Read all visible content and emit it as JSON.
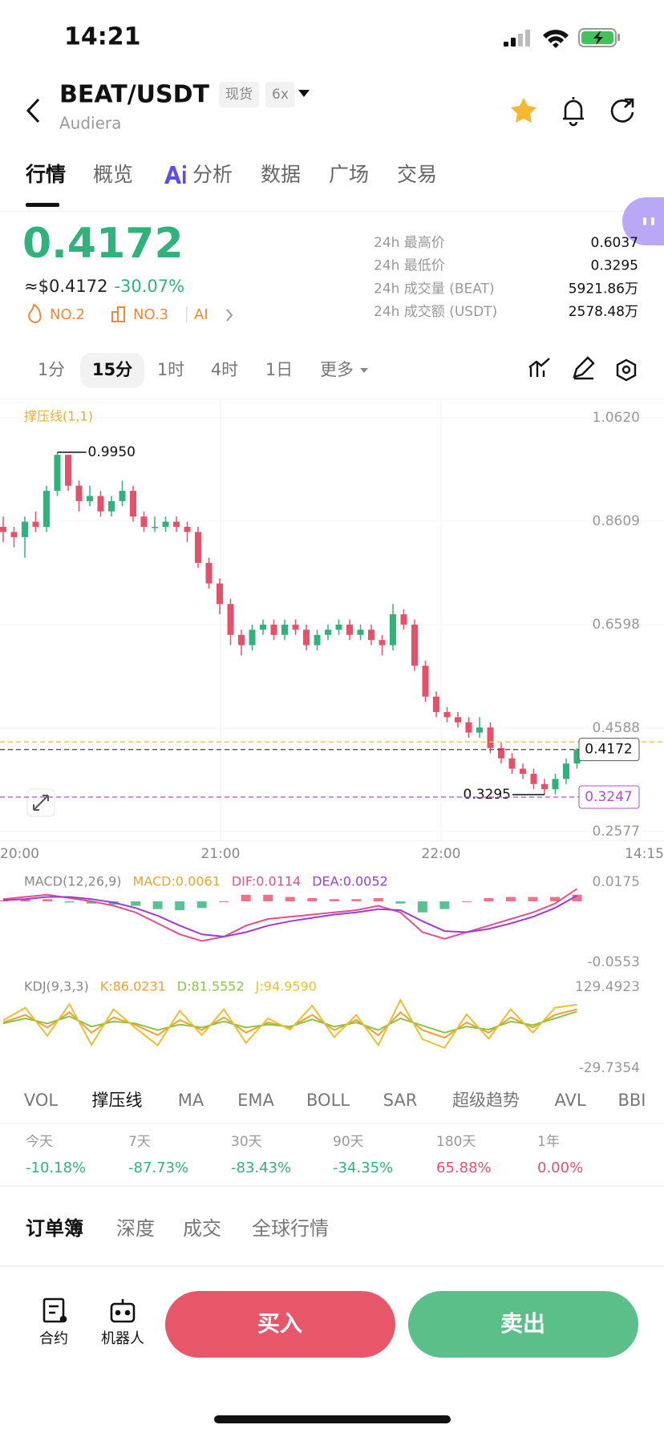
{
  "status_bar": {
    "time": "14:21"
  },
  "header": {
    "pair": "BEAT/USDT",
    "badges": [
      "现货",
      "6x"
    ],
    "subtitle": "Audiera"
  },
  "tabs": [
    "行情",
    "概览",
    "分析",
    "数据",
    "广场",
    "交易"
  ],
  "ticker": {
    "price": "0.4172",
    "usd": "≈$0.4172",
    "change": "-30.07%",
    "ranks": [
      "NO.2",
      "NO.3",
      "AI"
    ]
  },
  "stats": [
    {
      "label": "24h 最高价",
      "value": "0.6037"
    },
    {
      "label": "24h 最低价",
      "value": "0.3295"
    },
    {
      "label": "24h 成交量 (BEAT)",
      "value": "5921.86万"
    },
    {
      "label": "24h 成交额 (USDT)",
      "value": "2578.48万"
    }
  ],
  "timeframes": [
    "1分",
    "15分",
    "1时",
    "4时",
    "1日",
    "更多"
  ],
  "chart_data": [
    {
      "type": "candlestick",
      "title": "撑压线(1,1)",
      "open": [
        0.85,
        0.84,
        0.83,
        0.86,
        0.85,
        0.92,
        0.99,
        0.93,
        0.9,
        0.91,
        0.88,
        0.9,
        0.92,
        0.87,
        0.85,
        0.85,
        0.86,
        0.85,
        0.84,
        0.78,
        0.74,
        0.7,
        0.64,
        0.62,
        0.65,
        0.66,
        0.64,
        0.66,
        0.65,
        0.62,
        0.64,
        0.65,
        0.66,
        0.64,
        0.65,
        0.63,
        0.62,
        0.68,
        0.66,
        0.58,
        0.52,
        0.49,
        0.48,
        0.47,
        0.45,
        0.46,
        0.42,
        0.4,
        0.38,
        0.37,
        0.35,
        0.34,
        0.36,
        0.39
      ],
      "high": [
        0.87,
        0.85,
        0.87,
        0.88,
        0.93,
        0.995,
        0.99,
        0.94,
        0.93,
        0.92,
        0.91,
        0.94,
        0.93,
        0.88,
        0.87,
        0.87,
        0.87,
        0.86,
        0.85,
        0.79,
        0.75,
        0.71,
        0.65,
        0.66,
        0.67,
        0.67,
        0.67,
        0.67,
        0.66,
        0.65,
        0.66,
        0.67,
        0.67,
        0.66,
        0.66,
        0.64,
        0.7,
        0.69,
        0.67,
        0.59,
        0.53,
        0.5,
        0.49,
        0.48,
        0.48,
        0.47,
        0.43,
        0.41,
        0.39,
        0.38,
        0.36,
        0.37,
        0.4,
        0.42
      ],
      "low": [
        0.82,
        0.81,
        0.79,
        0.84,
        0.84,
        0.91,
        0.92,
        0.88,
        0.89,
        0.87,
        0.87,
        0.89,
        0.86,
        0.84,
        0.84,
        0.84,
        0.84,
        0.82,
        0.77,
        0.73,
        0.68,
        0.62,
        0.6,
        0.61,
        0.64,
        0.63,
        0.63,
        0.64,
        0.61,
        0.61,
        0.63,
        0.64,
        0.63,
        0.63,
        0.62,
        0.6,
        0.61,
        0.65,
        0.57,
        0.51,
        0.48,
        0.47,
        0.46,
        0.44,
        0.44,
        0.41,
        0.39,
        0.37,
        0.36,
        0.34,
        0.3295,
        0.33,
        0.35,
        0.38
      ],
      "close": [
        0.84,
        0.83,
        0.86,
        0.85,
        0.92,
        0.99,
        0.93,
        0.9,
        0.91,
        0.88,
        0.9,
        0.92,
        0.87,
        0.85,
        0.85,
        0.86,
        0.85,
        0.84,
        0.78,
        0.74,
        0.7,
        0.64,
        0.62,
        0.65,
        0.66,
        0.64,
        0.66,
        0.65,
        0.62,
        0.64,
        0.65,
        0.66,
        0.64,
        0.65,
        0.63,
        0.62,
        0.68,
        0.66,
        0.58,
        0.52,
        0.49,
        0.48,
        0.47,
        0.45,
        0.46,
        0.42,
        0.4,
        0.38,
        0.37,
        0.35,
        0.34,
        0.36,
        0.39,
        0.4172
      ],
      "up_color": "#2fb37a",
      "down_color": "#e8506a",
      "ylim": [
        0.2577,
        1.062
      ],
      "yticks": [
        {
          "value": 1.062,
          "label": "1.0620"
        },
        0.8609,
        0.6598,
        0.4588,
        0.2577
      ],
      "time_labels": [
        "20:00",
        "21:00",
        "22:00",
        "14:15"
      ],
      "annotations": [
        {
          "value": 0.995,
          "label": "0.9950"
        },
        {
          "value": 0.3295,
          "label": "0.3295"
        }
      ],
      "price_lines": [
        {
          "value": 0.432,
          "color": "#e8c840"
        },
        {
          "value": 0.4172,
          "label": "0.4172",
          "color": "#555555"
        },
        {
          "value": 0.3247,
          "label": "0.3247",
          "color": "#b04fd0"
        }
      ]
    },
    {
      "type": "macd",
      "title": "MACD(12,26,9)",
      "ylim": [
        -0.0553,
        0.0175
      ],
      "yticks": [
        0.0175,
        -0.0553
      ],
      "series": [
        {
          "name": "MACD:0.0061",
          "color": "#f0a030",
          "up_color": "#e8506a",
          "down_color": "#2fb37a",
          "values": [
            0.001,
            0.002,
            0.002,
            -0.001,
            -0.002,
            -0.003,
            -0.004,
            -0.007,
            -0.008,
            -0.006,
            0.0,
            0.006,
            0.006,
            0.004,
            0.003,
            0.002,
            0.002,
            0.003,
            -0.002,
            -0.01,
            -0.007,
            0.0,
            0.003,
            0.004,
            0.004,
            0.004,
            0.0061
          ]
        },
        {
          "name": "DIF:0.0114",
          "color": "#e0508a",
          "values": [
            0.002,
            0.004,
            0.006,
            0.003,
            0.0,
            -0.004,
            -0.01,
            -0.02,
            -0.03,
            -0.036,
            -0.032,
            -0.022,
            -0.016,
            -0.014,
            -0.012,
            -0.01,
            -0.008,
            -0.004,
            -0.01,
            -0.028,
            -0.034,
            -0.028,
            -0.022,
            -0.016,
            -0.01,
            -0.002,
            0.0114
          ]
        },
        {
          "name": "DEA:0.0052",
          "color": "#9b3dd6",
          "values": [
            0.001,
            0.002,
            0.004,
            0.004,
            0.002,
            -0.001,
            -0.006,
            -0.013,
            -0.022,
            -0.03,
            -0.032,
            -0.028,
            -0.022,
            -0.018,
            -0.015,
            -0.012,
            -0.01,
            -0.007,
            -0.008,
            -0.018,
            -0.027,
            -0.028,
            -0.025,
            -0.02,
            -0.014,
            -0.006,
            0.0052
          ]
        }
      ]
    },
    {
      "type": "kdj",
      "title": "KDJ(9,3,3)",
      "ylim": [
        -29.7354,
        129.4923
      ],
      "yticks": [
        129.4923,
        -29.7354
      ],
      "series": [
        {
          "name": "K:86.0231",
          "color": "#f0a030",
          "values": [
            60,
            75,
            50,
            80,
            40,
            70,
            55,
            35,
            65,
            45,
            70,
            40,
            60,
            50,
            75,
            45,
            65,
            35,
            80,
            45,
            30,
            60,
            40,
            70,
            50,
            75,
            86.0231
          ]
        },
        {
          "name": "D:81.5552",
          "color": "#8bc34a",
          "values": [
            58,
            68,
            58,
            72,
            52,
            62,
            58,
            45,
            56,
            50,
            62,
            50,
            56,
            52,
            66,
            52,
            60,
            45,
            68,
            54,
            40,
            52,
            46,
            62,
            55,
            68,
            81.5552
          ]
        },
        {
          "name": "J:94.9590",
          "color": "#e8c030",
          "values": [
            64,
            89,
            34,
            96,
            16,
            86,
            49,
            15,
            83,
            35,
            86,
            20,
            68,
            46,
            93,
            31,
            75,
            15,
            104,
            27,
            10,
            76,
            28,
            86,
            40,
            89,
            94.959
          ]
        }
      ]
    }
  ],
  "indicator_tabs": [
    "VOL",
    "撑压线",
    "MA",
    "EMA",
    "BOLL",
    "SAR",
    "超级趋势",
    "AVL",
    "BBI"
  ],
  "period_returns": [
    {
      "label": "今天",
      "value": "-10.18%"
    },
    {
      "label": "7天",
      "value": "-87.73%"
    },
    {
      "label": "30天",
      "value": "-83.43%"
    },
    {
      "label": "90天",
      "value": "-34.35%"
    },
    {
      "label": "180天",
      "value": "65.88%"
    },
    {
      "label": "1年",
      "value": "0.00%"
    }
  ],
  "book_tabs": [
    "订单簿",
    "深度",
    "成交",
    "全球行情"
  ],
  "bottom_bar": {
    "contract": "合约",
    "bot": "机器人",
    "buy": "买入",
    "sell": "卖出"
  }
}
